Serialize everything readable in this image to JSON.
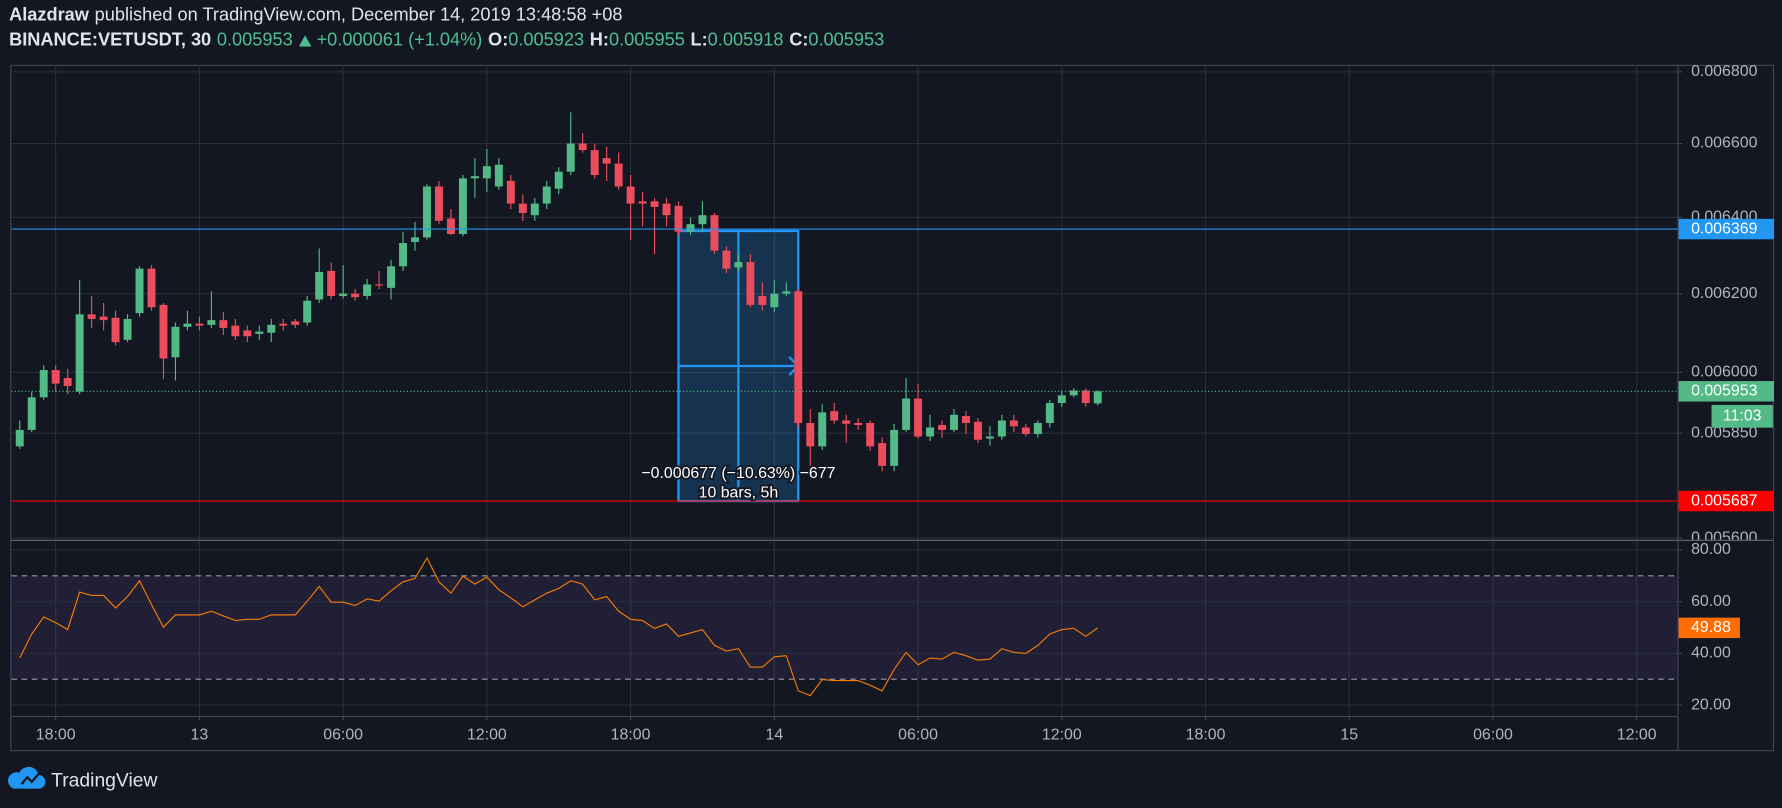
{
  "header": {
    "author": "Alazdraw",
    "published": "published on TradingView.com, December 14, 2019 13:48:58 +08",
    "symbol": "BINANCE:VETUSDT, 30",
    "change": "+0.000061 (+1.04%)",
    "ohlc_labels": [
      "O:",
      "H:",
      "L:",
      "C:"
    ]
  },
  "footer": {
    "brand": "TradingView"
  },
  "chart_data": [
    {
      "type": "candlestick",
      "log_scale": true,
      "grid": true,
      "up_color": "#53b987",
      "down_color": "#eb4d5c",
      "xlim": [
        16.15,
        85.7
      ],
      "xticks": [
        {
          "value": 18,
          "label": "18:00"
        },
        {
          "value": 24,
          "label": "13"
        },
        {
          "value": 30,
          "label": "06:00"
        },
        {
          "value": 36,
          "label": "12:00"
        },
        {
          "value": 42,
          "label": "18:00"
        },
        {
          "value": 48,
          "label": "14"
        },
        {
          "value": 54,
          "label": "06:00"
        },
        {
          "value": 60,
          "label": "12:00"
        },
        {
          "value": 66,
          "label": "18:00"
        },
        {
          "value": 72,
          "label": "15"
        },
        {
          "value": 78,
          "label": "06:00"
        },
        {
          "value": 84,
          "label": "12:00"
        }
      ],
      "ylim": [
        0.005596,
        0.00682
      ],
      "yticks": [
        {
          "value": 0.0056,
          "label": "0.005600"
        },
        {
          "value": 0.00585,
          "label": "0.005850"
        },
        {
          "value": 0.006,
          "label": "0.006000"
        },
        {
          "value": 0.0062,
          "label": "0.006200"
        },
        {
          "value": 0.0064,
          "label": "0.006400"
        },
        {
          "value": 0.0066,
          "label": "0.006600"
        },
        {
          "value": 0.0068,
          "label": "0.006800"
        }
      ],
      "x": [
        16.5,
        17,
        17.5,
        18,
        18.5,
        19,
        19.5,
        20,
        20.5,
        21,
        21.5,
        22,
        22.5,
        23,
        23.5,
        24,
        24.5,
        25,
        25.5,
        26,
        26.5,
        27,
        27.5,
        28,
        28.5,
        29,
        29.5,
        30,
        30.5,
        31,
        31.5,
        32,
        32.5,
        33,
        33.5,
        34,
        34.5,
        35,
        35.5,
        36,
        36.5,
        37,
        37.5,
        38,
        38.5,
        39,
        39.5,
        40,
        40.5,
        41,
        41.5,
        42,
        42.5,
        43,
        43.5,
        44,
        44.5,
        45,
        45.5,
        46,
        46.5,
        47,
        47.5,
        48,
        48.5,
        49,
        49.5,
        50,
        50.5,
        51,
        51.5,
        52,
        52.5,
        53,
        53.5,
        54,
        54.5,
        55,
        55.5,
        56,
        56.5,
        57,
        57.5,
        58,
        58.5,
        59,
        59.5,
        60,
        60.5,
        61,
        61.5
      ],
      "open": [
        0.005818,
        0.005858,
        0.005938,
        0.006006,
        0.005986,
        0.005952,
        0.006147,
        0.006141,
        0.006138,
        0.006082,
        0.00615,
        0.006265,
        0.006171,
        0.006038,
        0.006115,
        0.006123,
        0.00612,
        0.006132,
        0.006118,
        0.006106,
        0.006097,
        0.0061,
        0.006123,
        0.006129,
        0.006126,
        0.006185,
        0.006259,
        0.006194,
        0.0062,
        0.006194,
        0.006224,
        0.006215,
        0.006271,
        0.006335,
        0.006347,
        0.006483,
        0.006397,
        0.006356,
        0.006505,
        0.006505,
        0.006483,
        0.006498,
        0.006437,
        0.006406,
        0.006437,
        0.006477,
        0.006523,
        0.0066,
        0.006582,
        0.00656,
        0.006545,
        0.006483,
        0.006443,
        0.006443,
        0.006437,
        0.006431,
        0.006362,
        0.006382,
        0.006406,
        0.006312,
        0.006268,
        0.006282,
        0.006194,
        0.006165,
        0.0062,
        0.006206,
        0.005875,
        0.005818,
        0.005904,
        0.005881,
        0.005875,
        0.005875,
        0.005826,
        0.005771,
        0.005858,
        0.005935,
        0.005842,
        0.00587,
        0.005858,
        0.005892,
        0.005878,
        0.005837,
        0.005842,
        0.005881,
        0.005864,
        0.005848,
        0.005875,
        0.005924,
        0.005943,
        0.005955,
        0.005923
      ],
      "high": [
        0.005881,
        0.005952,
        0.006018,
        0.006018,
        0.006009,
        0.006235,
        0.006194,
        0.006176,
        0.006156,
        0.006147,
        0.006271,
        0.006274,
        0.006176,
        0.006126,
        0.006156,
        0.006141,
        0.006206,
        0.006153,
        0.006135,
        0.006118,
        0.006118,
        0.006135,
        0.006135,
        0.006135,
        0.006194,
        0.006318,
        0.006282,
        0.006274,
        0.006212,
        0.006238,
        0.006259,
        0.006288,
        0.006362,
        0.006388,
        0.006489,
        0.006498,
        0.006422,
        0.006514,
        0.00656,
        0.006585,
        0.00656,
        0.006514,
        0.006462,
        0.006452,
        0.006498,
        0.006535,
        0.006686,
        0.006629,
        0.0066,
        0.006591,
        0.006575,
        0.006514,
        0.006468,
        0.006452,
        0.006452,
        0.006443,
        0.0064,
        0.006443,
        0.006412,
        0.006323,
        0.006303,
        0.006303,
        0.006229,
        0.006235,
        0.006229,
        0.006212,
        0.005909,
        0.005921,
        0.005924,
        0.005895,
        0.005887,
        0.005881,
        0.005839,
        0.005873,
        0.005986,
        0.005972,
        0.005895,
        0.005881,
        0.005909,
        0.005904,
        0.005887,
        0.005867,
        0.005895,
        0.005895,
        0.005873,
        0.005881,
        0.005932,
        0.005955,
        0.00596,
        0.00596,
        0.005955
      ],
      "low": [
        0.005812,
        0.005853,
        0.005932,
        0.005952,
        0.005946,
        0.005946,
        0.006112,
        0.006106,
        0.006068,
        0.006076,
        0.006141,
        0.006156,
        0.005983,
        0.00598,
        0.006106,
        0.006106,
        0.006112,
        0.006094,
        0.006082,
        0.006076,
        0.006082,
        0.006076,
        0.006106,
        0.006112,
        0.006118,
        0.006176,
        0.006185,
        0.006188,
        0.006182,
        0.006185,
        0.006212,
        0.006185,
        0.006259,
        0.006312,
        0.006341,
        0.006382,
        0.006353,
        0.00635,
        0.006452,
        0.006468,
        0.006474,
        0.006422,
        0.006391,
        0.006391,
        0.006422,
        0.006462,
        0.006514,
        0.006575,
        0.006505,
        0.006498,
        0.006474,
        0.006341,
        0.006376,
        0.006303,
        0.006376,
        0.006353,
        0.006353,
        0.006362,
        0.006303,
        0.006253,
        0.006259,
        0.006165,
        0.006156,
        0.006153,
        0.006194,
        0.005864,
        0.005771,
        0.005809,
        0.005873,
        0.005826,
        0.005858,
        0.005807,
        0.005758,
        0.005758,
        0.005853,
        0.005837,
        0.005831,
        0.005839,
        0.005853,
        0.005848,
        0.005826,
        0.00582,
        0.005834,
        0.005853,
        0.005842,
        0.005839,
        0.005864,
        0.005915,
        0.005938,
        0.005915,
        0.005918
      ],
      "close": [
        0.005858,
        0.005938,
        0.006006,
        0.005972,
        0.005966,
        0.006147,
        0.006135,
        0.006132,
        0.006076,
        0.006135,
        0.006265,
        0.006165,
        0.006035,
        0.006115,
        0.006123,
        0.006118,
        0.006132,
        0.006112,
        0.006091,
        0.006091,
        0.006103,
        0.00612,
        0.006118,
        0.00612,
        0.006182,
        0.006256,
        0.006194,
        0.0062,
        0.006191,
        0.006224,
        0.006221,
        0.006271,
        0.006332,
        0.006347,
        0.006483,
        0.006391,
        0.006356,
        0.006505,
        0.006511,
        0.006538,
        0.006542,
        0.006437,
        0.006412,
        0.006437,
        0.006483,
        0.006523,
        0.0066,
        0.006582,
        0.006514,
        0.006545,
        0.006483,
        0.006437,
        0.006437,
        0.006428,
        0.006406,
        0.006362,
        0.006382,
        0.006406,
        0.006312,
        0.006265,
        0.006282,
        0.006171,
        0.006171,
        0.0062,
        0.006206,
        0.005875,
        0.005818,
        0.005901,
        0.005881,
        0.005873,
        0.00587,
        0.005818,
        0.005771,
        0.005858,
        0.005935,
        0.005842,
        0.005864,
        0.005858,
        0.005895,
        0.005875,
        0.005834,
        0.005842,
        0.005881,
        0.005867,
        0.005848,
        0.005875,
        0.005924,
        0.005943,
        0.005955,
        0.005924,
        0.005953
      ],
      "countdown": "11:03",
      "hlines": [
        {
          "value": 0.006369,
          "color": "#2196f3"
        },
        {
          "value": 0.005687,
          "color": "#ff0000"
        }
      ],
      "measure": {
        "x": [
          44,
          49
        ],
        "prices": [
          0.006364,
          0.005687
        ],
        "label": "−0.000677 (−10.63%) −677",
        "sublabel": "10 bars, 5h",
        "color": "#2196f3"
      }
    },
    {
      "type": "line",
      "name": "RSI",
      "color": "#f57c00",
      "ylim": [
        15.8,
        83.5
      ],
      "yticks": [
        {
          "value": 20,
          "label": "20.00"
        },
        {
          "value": 40,
          "label": "40.00"
        },
        {
          "value": 60,
          "label": "60.00"
        },
        {
          "value": 80,
          "label": "80.00"
        }
      ],
      "bands": [
        30,
        70
      ],
      "values": [
        38.2,
        47.5,
        54.1,
        51.9,
        49.2,
        63.7,
        62.4,
        62.4,
        57.6,
        62,
        68.1,
        58.9,
        50.1,
        54.9,
        54.9,
        54.9,
        56.3,
        54.5,
        52.7,
        53.2,
        53.2,
        54.9,
        54.9,
        54.9,
        60.2,
        65.9,
        59.8,
        59.8,
        58.5,
        61.1,
        60.2,
        64.2,
        67.7,
        69,
        76.9,
        67.7,
        63.3,
        69.9,
        66.8,
        69.5,
        64.6,
        61.5,
        58,
        60.7,
        63.3,
        65.1,
        68.1,
        66.8,
        60.7,
        62,
        56.3,
        53.2,
        52.7,
        49.7,
        51.4,
        46.6,
        47.9,
        49.2,
        43.1,
        40.9,
        41.8,
        34.7,
        34.7,
        38.7,
        39.1,
        25.5,
        23.7,
        29.9,
        29.5,
        29.5,
        29.5,
        27.7,
        25.5,
        33.8,
        40.4,
        35.6,
        38.2,
        37.8,
        40.4,
        39.1,
        37.4,
        37.8,
        41.8,
        40.4,
        40,
        43.1,
        47.5,
        49.2,
        49.7,
        46.6,
        49.88
      ]
    }
  ]
}
